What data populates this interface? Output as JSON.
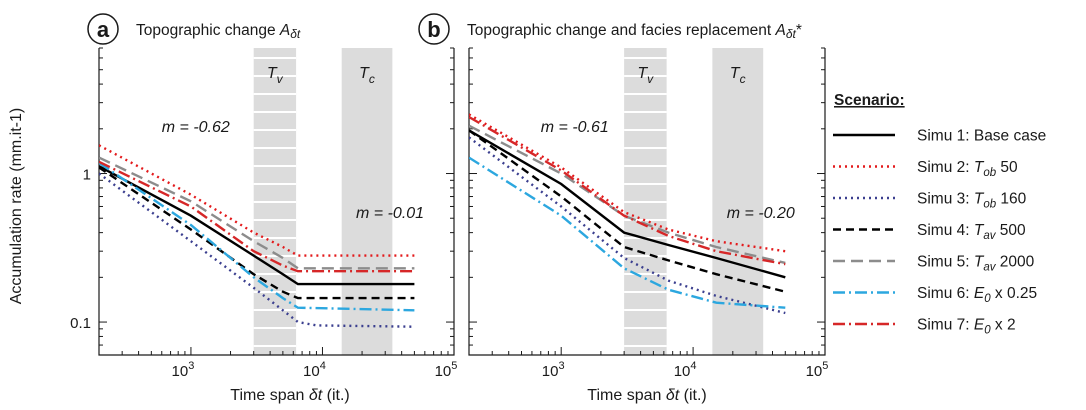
{
  "panels": {
    "a": {
      "badge": "a",
      "title": "Topographic change ",
      "title_sym": "A",
      "title_sub": "δt",
      "title_suffix": ""
    },
    "b": {
      "badge": "b",
      "title": "Topographic change and facies replacement ",
      "title_sym": "A",
      "title_sub": "δt",
      "title_suffix": "*"
    }
  },
  "axes": {
    "ylabel": "Accumulation rate (mm.it-1)",
    "xlabel_prefix": "Time span ",
    "xlabel_sym": "δt",
    "xlabel_suffix": "  (it.)"
  },
  "bands": {
    "tv": {
      "label": "T",
      "sub": "v"
    },
    "tc": {
      "label": "T",
      "sub": "c"
    }
  },
  "annotations": {
    "a_m1": "m = -0.62",
    "a_m2": "m = -0.01",
    "b_m1": "m = -0.61",
    "b_m2": "m = -0.20"
  },
  "legend": {
    "title": "Scenario:",
    "entries": [
      {
        "pre": "Simu 1: Base case",
        "sym": "",
        "sub": "",
        "post": ""
      },
      {
        "pre": "Simu 2: ",
        "sym": "T",
        "sub": "ob",
        "post": " 50"
      },
      {
        "pre": "Simu 3: ",
        "sym": "T",
        "sub": "ob",
        "post": " 160"
      },
      {
        "pre": "Simu 4: ",
        "sym": "T",
        "sub": "av",
        "post": " 500"
      },
      {
        "pre": "Simu 5: ",
        "sym": "T",
        "sub": "av",
        "post": " 2000"
      },
      {
        "pre": "Simu 6: ",
        "sym": "E",
        "sub": "0",
        "post": " x 0.25"
      },
      {
        "pre": "Simu 7: ",
        "sym": "E",
        "sub": "0",
        "post": " x 2"
      }
    ]
  },
  "chart_data": [
    {
      "panel": "a",
      "type": "line",
      "x_scale": "log",
      "y_scale": "log",
      "xlim": [
        200,
        100000
      ],
      "ylim": [
        0.06,
        7
      ],
      "x_ticks": [
        {
          "base": "10",
          "exp": "3"
        },
        {
          "base": "10",
          "exp": "4"
        },
        {
          "base": "10",
          "exp": "5"
        }
      ],
      "y_ticks": [
        "0.1",
        "1"
      ],
      "shaded_bands": [
        {
          "label": "Tv",
          "x": [
            3000,
            6300
          ],
          "style": "hatched"
        },
        {
          "label": "Tc",
          "x": [
            14000,
            34000
          ],
          "style": "solid"
        }
      ],
      "grid": false,
      "legend_position": "right",
      "series": [
        {
          "name": "Simu 1: Base case",
          "color": "#000000",
          "dash": "solid",
          "points": [
            [
              200,
              1.12
            ],
            [
              1000,
              0.52
            ],
            [
              3000,
              0.28
            ],
            [
              5000,
              0.21
            ],
            [
              6500,
              0.18
            ],
            [
              50000,
              0.18
            ]
          ]
        },
        {
          "name": "Simu 2: Tob 50",
          "color": "#e31a1c",
          "dash": "dot",
          "points": [
            [
              200,
              1.55
            ],
            [
              1000,
              0.72
            ],
            [
              3000,
              0.4
            ],
            [
              5000,
              0.32
            ],
            [
              6500,
              0.28
            ],
            [
              50000,
              0.28
            ]
          ]
        },
        {
          "name": "Simu 3: Tob 160",
          "color": "#3b3f8f",
          "dash": "dot",
          "points": [
            [
              200,
              1.0
            ],
            [
              1000,
              0.35
            ],
            [
              3000,
              0.17
            ],
            [
              5000,
              0.12
            ],
            [
              6500,
              0.1
            ],
            [
              9000,
              0.095
            ],
            [
              50000,
              0.093
            ]
          ]
        },
        {
          "name": "Simu 4: Tav 500",
          "color": "#000000",
          "dash": "dash",
          "points": [
            [
              200,
              1.1
            ],
            [
              1000,
              0.42
            ],
            [
              3000,
              0.21
            ],
            [
              5000,
              0.16
            ],
            [
              6500,
              0.145
            ],
            [
              50000,
              0.145
            ]
          ]
        },
        {
          "name": "Simu 5: Tav 2000",
          "color": "#8c8c8c",
          "dash": "longdash",
          "points": [
            [
              200,
              1.28
            ],
            [
              1000,
              0.65
            ],
            [
              3000,
              0.35
            ],
            [
              5000,
              0.27
            ],
            [
              6500,
              0.23
            ],
            [
              50000,
              0.23
            ]
          ]
        },
        {
          "name": "Simu 6: E0 x 0.25",
          "color": "#2ca7df",
          "dash": "dashdot",
          "points": [
            [
              200,
              1.18
            ],
            [
              1000,
              0.45
            ],
            [
              3000,
              0.2
            ],
            [
              5000,
              0.145
            ],
            [
              6500,
              0.125
            ],
            [
              50000,
              0.12
            ]
          ]
        },
        {
          "name": "Simu 7: E0 x 2",
          "color": "#d62728",
          "dash": "dashdot",
          "points": [
            [
              200,
              1.2
            ],
            [
              1000,
              0.6
            ],
            [
              3000,
              0.3
            ],
            [
              5000,
              0.24
            ],
            [
              6500,
              0.22
            ],
            [
              50000,
              0.22
            ]
          ]
        }
      ]
    },
    {
      "panel": "b",
      "type": "line",
      "x_scale": "log",
      "y_scale": "log",
      "xlim": [
        200,
        100000
      ],
      "ylim": [
        0.06,
        7
      ],
      "x_ticks": [
        {
          "base": "10",
          "exp": "3"
        },
        {
          "base": "10",
          "exp": "4"
        },
        {
          "base": "10",
          "exp": "5"
        }
      ],
      "y_ticks": [],
      "shaded_bands": [
        {
          "label": "Tv",
          "x": [
            3000,
            6300
          ],
          "style": "hatched"
        },
        {
          "label": "Tc",
          "x": [
            14000,
            34000
          ],
          "style": "solid"
        }
      ],
      "grid": false,
      "series": [
        {
          "name": "Simu 1: Base case",
          "color": "#000000",
          "dash": "solid",
          "points": [
            [
              200,
              1.95
            ],
            [
              1000,
              0.85
            ],
            [
              3000,
              0.4
            ],
            [
              6500,
              0.33
            ],
            [
              15000,
              0.27
            ],
            [
              50000,
              0.2
            ]
          ]
        },
        {
          "name": "Simu 2: Tob 50",
          "color": "#e31a1c",
          "dash": "dot",
          "points": [
            [
              200,
              2.5
            ],
            [
              1000,
              1.1
            ],
            [
              3000,
              0.55
            ],
            [
              6500,
              0.42
            ],
            [
              15000,
              0.35
            ],
            [
              50000,
              0.3
            ]
          ]
        },
        {
          "name": "Simu 3: Tob 160",
          "color": "#3b3f8f",
          "dash": "dot",
          "points": [
            [
              200,
              1.75
            ],
            [
              1000,
              0.6
            ],
            [
              3000,
              0.27
            ],
            [
              6500,
              0.19
            ],
            [
              15000,
              0.15
            ],
            [
              50000,
              0.115
            ]
          ]
        },
        {
          "name": "Simu 4: Tav 500",
          "color": "#000000",
          "dash": "dash",
          "points": [
            [
              200,
              1.95
            ],
            [
              1000,
              0.7
            ],
            [
              3000,
              0.32
            ],
            [
              6500,
              0.26
            ],
            [
              15000,
              0.21
            ],
            [
              50000,
              0.16
            ]
          ]
        },
        {
          "name": "Simu 5: Tav 2000",
          "color": "#8c8c8c",
          "dash": "longdash",
          "points": [
            [
              200,
              2.1
            ],
            [
              1000,
              1.0
            ],
            [
              3000,
              0.52
            ],
            [
              6500,
              0.4
            ],
            [
              15000,
              0.32
            ],
            [
              50000,
              0.25
            ]
          ]
        },
        {
          "name": "Simu 6: E0 x 0.25",
          "color": "#2ca7df",
          "dash": "dashdot",
          "points": [
            [
              200,
              1.28
            ],
            [
              1000,
              0.52
            ],
            [
              3000,
              0.23
            ],
            [
              6500,
              0.165
            ],
            [
              15000,
              0.135
            ],
            [
              50000,
              0.125
            ]
          ]
        },
        {
          "name": "Simu 7: E0 x 2",
          "color": "#d62728",
          "dash": "dashdot",
          "points": [
            [
              200,
              2.4
            ],
            [
              1000,
              1.05
            ],
            [
              3000,
              0.52
            ],
            [
              6500,
              0.38
            ],
            [
              15000,
              0.3
            ],
            [
              50000,
              0.245
            ]
          ]
        }
      ]
    }
  ]
}
